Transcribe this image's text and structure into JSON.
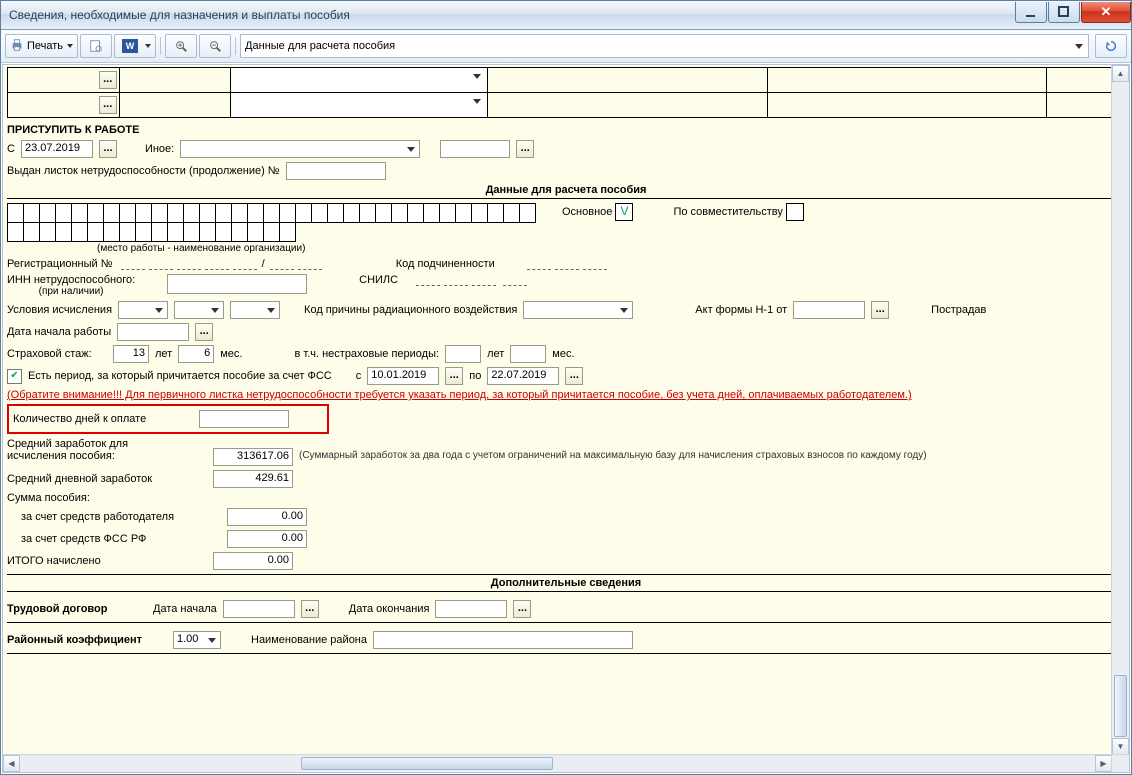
{
  "window": {
    "title": "Сведения, необходимые для назначения и выплаты пособия"
  },
  "toolbar": {
    "print_label": "Печать",
    "mode_combo": "Данные для расчета пособия"
  },
  "sections": {
    "start_work": "ПРИСТУПИТЬ К РАБОТЕ",
    "calc": "Данные для расчета пособия",
    "extra": "Дополнительные сведения"
  },
  "start_work": {
    "from_lbl": "С",
    "from_date": "23.07.2019",
    "other_lbl": "Иное:",
    "cont_lbl": "Выдан листок нетрудоспособности (продолжение) №"
  },
  "calc": {
    "main_lbl": "Основное",
    "main_checked": "V",
    "parttime_lbl": "По совместительству",
    "workplace_caption": "(место работы - наименование организации)",
    "reg_lbl": "Регистрационный №",
    "sub_lbl": "Код подчиненности",
    "inn_lbl": "ИНН нетрудоспособного:",
    "inn_sub": "(при наличии)",
    "snils_lbl": "СНИЛС",
    "cond_lbl": "Условия исчисления",
    "rad_lbl": "Код причины радиационного воздействия",
    "act_lbl": "Акт формы Н-1 от",
    "victim_lbl": "Пострадав",
    "startdate_lbl": "Дата начала работы",
    "stazh_lbl": "Страховой стаж:",
    "stazh_years": "13",
    "years_u": "лет",
    "stazh_months": "6",
    "months_u": "мес.",
    "nonins_lbl": "в т.ч. нестраховые периоды:",
    "fss_period_lbl": "Есть период, за который причитается пособие за счет ФСС",
    "fss_from_lbl": "с",
    "fss_from": "10.01.2019",
    "fss_to_lbl": "по",
    "fss_to": "22.07.2019",
    "warn": "(Обратите внимание!!! Для первичного листка нетрудоспособности требуется указать период, за который причитается пособие, без учета дней, оплачиваемых работодателем.)",
    "days_lbl": "Количество дней к оплате",
    "avg2y_lbl1": "Средний заработок для",
    "avg2y_lbl2": "исчисления пособия:",
    "avg2y_val": "313617.06",
    "avg2y_note": "(Суммарный заработок за два года с учетом ограничений на максимальную базу для начисления страховых взносов по каждому году)",
    "avgday_lbl": "Средний дневной заработок",
    "avgday_val": "429.61",
    "sum_lbl": "Сумма пособия:",
    "emp_lbl": "за счет средств работодателя",
    "emp_val": "0.00",
    "fssrf_lbl": "за счет средств ФСС РФ",
    "fssrf_val": "0.00",
    "total_lbl": "ИТОГО начислено",
    "total_val": "0.00"
  },
  "extra": {
    "contract_lbl": "Трудовой договор",
    "start_lbl": "Дата начала",
    "end_lbl": "Дата окончания",
    "coef_lbl": "Районный коэффициент",
    "coef_val": "1.00",
    "region_lbl": "Наименование района"
  },
  "style": {
    "bg": "#fefde9",
    "warn_color": "#c00",
    "redbox_color": "#d00",
    "cellgrid_cells_row1": 33,
    "cellgrid_cells_row2": 18
  }
}
